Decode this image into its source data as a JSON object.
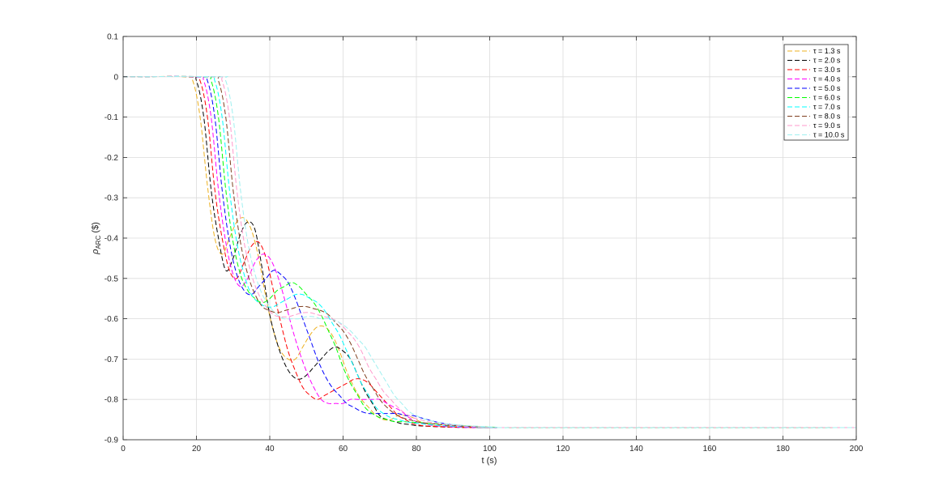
{
  "chart_data": {
    "type": "line",
    "title": "",
    "xlabel": "t (s)",
    "ylabel_main": "ρ",
    "ylabel_sub": "ARC",
    "ylabel_unit": " ($)",
    "xlim": [
      0,
      200
    ],
    "ylim": [
      -0.9,
      0.1
    ],
    "xticks": [
      0,
      20,
      40,
      60,
      80,
      100,
      120,
      140,
      160,
      180,
      200
    ],
    "yticks": [
      0.1,
      0,
      -0.1,
      -0.2,
      -0.3,
      -0.4,
      -0.5,
      -0.6,
      -0.7,
      -0.8,
      -0.9
    ],
    "xtick_labels": [
      "0",
      "20",
      "40",
      "60",
      "80",
      "100",
      "120",
      "140",
      "160",
      "180",
      "200"
    ],
    "ytick_labels": [
      "0.1",
      "0",
      "-0.1",
      "-0.2",
      "-0.3",
      "-0.4",
      "-0.5",
      "-0.6",
      "-0.7",
      "-0.8",
      "-0.9"
    ],
    "grid": true,
    "legend_position": "top-right",
    "series": [
      {
        "name": "τ = 1.3 s",
        "color": "#EDB120",
        "x": [
          0,
          17,
          19,
          21,
          23,
          25,
          27,
          29,
          31,
          33,
          35,
          37,
          39,
          41,
          43,
          45,
          47,
          49,
          51,
          53,
          55,
          57,
          59,
          61,
          63,
          65,
          67,
          69,
          71,
          73,
          75,
          77,
          79,
          81,
          85,
          90,
          95,
          100,
          103,
          200
        ],
        "y": [
          0,
          0,
          -0.01,
          -0.1,
          -0.27,
          -0.4,
          -0.44,
          -0.4,
          -0.36,
          -0.35,
          -0.38,
          -0.45,
          -0.55,
          -0.63,
          -0.68,
          -0.7,
          -0.7,
          -0.67,
          -0.64,
          -0.62,
          -0.62,
          -0.64,
          -0.68,
          -0.73,
          -0.77,
          -0.8,
          -0.82,
          -0.84,
          -0.85,
          -0.85,
          -0.84,
          -0.84,
          -0.845,
          -0.855,
          -0.865,
          -0.868,
          -0.869,
          -0.87,
          -0.87,
          -0.87
        ]
      },
      {
        "name": "τ = 2.0 s",
        "color": "#000000",
        "x": [
          0,
          18,
          20,
          22,
          24,
          26,
          28,
          30,
          32,
          34,
          36,
          38,
          40,
          42,
          44,
          46,
          48,
          50,
          52,
          54,
          56,
          58,
          60,
          62,
          64,
          66,
          68,
          70,
          72,
          74,
          76,
          78,
          80,
          82,
          86,
          90,
          95,
          100,
          103,
          200
        ],
        "y": [
          0,
          0,
          -0.01,
          -0.1,
          -0.28,
          -0.4,
          -0.48,
          -0.45,
          -0.39,
          -0.36,
          -0.38,
          -0.48,
          -0.59,
          -0.66,
          -0.71,
          -0.74,
          -0.75,
          -0.74,
          -0.72,
          -0.7,
          -0.68,
          -0.67,
          -0.68,
          -0.7,
          -0.74,
          -0.78,
          -0.81,
          -0.84,
          -0.85,
          -0.855,
          -0.86,
          -0.862,
          -0.865,
          -0.866,
          -0.868,
          -0.869,
          -0.87,
          -0.87,
          -0.87,
          -0.87
        ]
      },
      {
        "name": "τ = 3.0 s",
        "color": "#FF0000",
        "x": [
          0,
          19,
          21,
          23,
          25,
          27,
          29,
          31,
          33,
          35,
          37,
          39,
          41,
          43,
          45,
          47,
          49,
          51,
          53,
          55,
          57,
          59,
          61,
          63,
          65,
          67,
          69,
          71,
          73,
          75,
          77,
          79,
          81,
          83,
          87,
          91,
          96,
          101,
          104,
          200
        ],
        "y": [
          0,
          0,
          -0.01,
          -0.1,
          -0.28,
          -0.4,
          -0.48,
          -0.5,
          -0.46,
          -0.42,
          -0.41,
          -0.45,
          -0.53,
          -0.61,
          -0.68,
          -0.73,
          -0.77,
          -0.79,
          -0.8,
          -0.79,
          -0.78,
          -0.77,
          -0.76,
          -0.75,
          -0.75,
          -0.76,
          -0.78,
          -0.8,
          -0.82,
          -0.84,
          -0.85,
          -0.86,
          -0.864,
          -0.866,
          -0.868,
          -0.869,
          -0.87,
          -0.87,
          -0.87,
          -0.87
        ]
      },
      {
        "name": "τ = 4.0 s",
        "color": "#FF00FF",
        "x": [
          0,
          20,
          22,
          24,
          26,
          28,
          30,
          32,
          34,
          36,
          38,
          40,
          42,
          44,
          46,
          48,
          50,
          52,
          54,
          56,
          58,
          60,
          62,
          64,
          66,
          68,
          70,
          72,
          74,
          76,
          78,
          80,
          82,
          84,
          88,
          92,
          97,
          102,
          104,
          200
        ],
        "y": [
          0,
          0,
          -0.01,
          -0.1,
          -0.28,
          -0.41,
          -0.49,
          -0.52,
          -0.5,
          -0.46,
          -0.44,
          -0.45,
          -0.49,
          -0.55,
          -0.62,
          -0.68,
          -0.73,
          -0.77,
          -0.8,
          -0.81,
          -0.81,
          -0.81,
          -0.8,
          -0.8,
          -0.8,
          -0.8,
          -0.8,
          -0.81,
          -0.82,
          -0.83,
          -0.845,
          -0.855,
          -0.86,
          -0.864,
          -0.867,
          -0.869,
          -0.87,
          -0.87,
          -0.87,
          -0.87
        ]
      },
      {
        "name": "τ = 5.0 s",
        "color": "#0000FF",
        "x": [
          0,
          21,
          23,
          25,
          27,
          29,
          31,
          33,
          35,
          37,
          39,
          41,
          43,
          45,
          47,
          49,
          51,
          53,
          55,
          57,
          59,
          61,
          63,
          65,
          67,
          69,
          71,
          73,
          75,
          77,
          79,
          81,
          83,
          85,
          89,
          93,
          98,
          102,
          104,
          200
        ],
        "y": [
          0,
          0,
          -0.01,
          -0.1,
          -0.28,
          -0.41,
          -0.49,
          -0.53,
          -0.54,
          -0.52,
          -0.5,
          -0.48,
          -0.49,
          -0.51,
          -0.55,
          -0.6,
          -0.65,
          -0.7,
          -0.74,
          -0.77,
          -0.79,
          -0.81,
          -0.82,
          -0.83,
          -0.835,
          -0.835,
          -0.835,
          -0.835,
          -0.835,
          -0.84,
          -0.84,
          -0.845,
          -0.85,
          -0.855,
          -0.862,
          -0.866,
          -0.869,
          -0.87,
          -0.87,
          -0.87
        ]
      },
      {
        "name": "τ = 6.0 s",
        "color": "#00FF00",
        "x": [
          0,
          22,
          24,
          26,
          28,
          30,
          32,
          34,
          36,
          38,
          40,
          42,
          44,
          46,
          48,
          50,
          52,
          54,
          56,
          58,
          60,
          62,
          64,
          66,
          68,
          70,
          72,
          74,
          76,
          78,
          80,
          82,
          84,
          86,
          90,
          94,
          98,
          102,
          104,
          200
        ],
        "y": [
          0,
          0,
          -0.01,
          -0.1,
          -0.28,
          -0.41,
          -0.49,
          -0.53,
          -0.55,
          -0.56,
          -0.55,
          -0.53,
          -0.52,
          -0.51,
          -0.52,
          -0.54,
          -0.56,
          -0.59,
          -0.63,
          -0.67,
          -0.72,
          -0.76,
          -0.79,
          -0.82,
          -0.835,
          -0.845,
          -0.85,
          -0.855,
          -0.855,
          -0.856,
          -0.857,
          -0.858,
          -0.86,
          -0.861,
          -0.864,
          -0.866,
          -0.868,
          -0.869,
          -0.87,
          -0.87
        ]
      },
      {
        "name": "τ = 7.0 s",
        "color": "#00FFFF",
        "x": [
          0,
          23,
          25,
          27,
          29,
          31,
          33,
          35,
          37,
          39,
          41,
          43,
          45,
          47,
          49,
          51,
          53,
          55,
          57,
          59,
          61,
          63,
          65,
          67,
          69,
          71,
          73,
          75,
          77,
          79,
          81,
          83,
          85,
          87,
          91,
          95,
          99,
          102,
          104,
          200
        ],
        "y": [
          0,
          0,
          -0.01,
          -0.1,
          -0.28,
          -0.41,
          -0.49,
          -0.54,
          -0.56,
          -0.57,
          -0.57,
          -0.56,
          -0.55,
          -0.54,
          -0.54,
          -0.55,
          -0.56,
          -0.58,
          -0.61,
          -0.64,
          -0.68,
          -0.72,
          -0.76,
          -0.79,
          -0.82,
          -0.835,
          -0.845,
          -0.85,
          -0.855,
          -0.858,
          -0.86,
          -0.862,
          -0.864,
          -0.865,
          -0.867,
          -0.868,
          -0.869,
          -0.87,
          -0.87,
          -0.87
        ]
      },
      {
        "name": "τ = 8.0 s",
        "color": "#7F3F1F",
        "x": [
          0,
          24,
          26,
          28,
          30,
          32,
          34,
          36,
          38,
          40,
          42,
          44,
          46,
          48,
          50,
          52,
          54,
          56,
          58,
          60,
          62,
          64,
          66,
          68,
          70,
          72,
          74,
          76,
          78,
          80,
          82,
          84,
          86,
          88,
          92,
          96,
          100,
          102,
          104,
          200
        ],
        "y": [
          0,
          0,
          -0.01,
          -0.1,
          -0.28,
          -0.41,
          -0.49,
          -0.54,
          -0.57,
          -0.58,
          -0.585,
          -0.58,
          -0.575,
          -0.57,
          -0.57,
          -0.575,
          -0.58,
          -0.59,
          -0.61,
          -0.63,
          -0.66,
          -0.7,
          -0.74,
          -0.77,
          -0.8,
          -0.82,
          -0.835,
          -0.845,
          -0.85,
          -0.855,
          -0.858,
          -0.86,
          -0.862,
          -0.864,
          -0.866,
          -0.868,
          -0.869,
          -0.87,
          -0.87,
          -0.87
        ]
      },
      {
        "name": "τ = 9.0 s",
        "color": "#FF99CC",
        "x": [
          0,
          25,
          27,
          29,
          31,
          33,
          35,
          37,
          39,
          41,
          43,
          45,
          47,
          49,
          51,
          53,
          55,
          57,
          59,
          61,
          63,
          65,
          67,
          69,
          71,
          73,
          75,
          77,
          79,
          81,
          83,
          85,
          87,
          89,
          93,
          97,
          100,
          102,
          104,
          200
        ],
        "y": [
          0,
          0,
          -0.01,
          -0.1,
          -0.28,
          -0.41,
          -0.49,
          -0.54,
          -0.57,
          -0.59,
          -0.595,
          -0.595,
          -0.59,
          -0.585,
          -0.585,
          -0.59,
          -0.595,
          -0.6,
          -0.61,
          -0.63,
          -0.65,
          -0.68,
          -0.72,
          -0.75,
          -0.78,
          -0.8,
          -0.82,
          -0.835,
          -0.845,
          -0.85,
          -0.855,
          -0.858,
          -0.861,
          -0.863,
          -0.866,
          -0.868,
          -0.869,
          -0.87,
          -0.87,
          -0.87
        ]
      },
      {
        "name": "τ = 10.0 s",
        "color": "#A0F0F0",
        "x": [
          0,
          26,
          28,
          30,
          32,
          34,
          36,
          38,
          40,
          42,
          44,
          46,
          48,
          50,
          52,
          54,
          56,
          58,
          60,
          62,
          64,
          66,
          68,
          70,
          72,
          74,
          76,
          78,
          80,
          82,
          84,
          86,
          88,
          90,
          94,
          98,
          100,
          102,
          104,
          200
        ],
        "y": [
          0,
          0,
          -0.01,
          -0.1,
          -0.28,
          -0.41,
          -0.49,
          -0.54,
          -0.57,
          -0.59,
          -0.6,
          -0.6,
          -0.6,
          -0.595,
          -0.595,
          -0.6,
          -0.6,
          -0.605,
          -0.615,
          -0.63,
          -0.65,
          -0.67,
          -0.7,
          -0.73,
          -0.76,
          -0.79,
          -0.81,
          -0.83,
          -0.84,
          -0.848,
          -0.853,
          -0.857,
          -0.86,
          -0.862,
          -0.865,
          -0.867,
          -0.868,
          -0.869,
          -0.87,
          -0.87
        ]
      }
    ]
  }
}
